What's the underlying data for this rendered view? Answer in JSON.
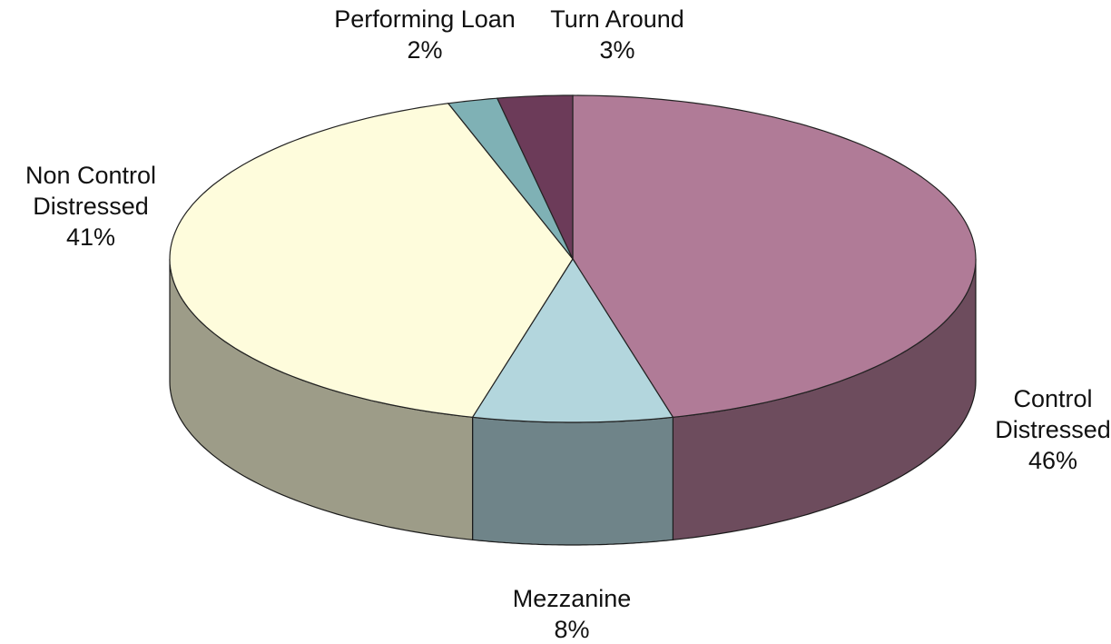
{
  "chart_data": {
    "type": "pie",
    "categories": [
      "Control Distressed",
      "Mezzanine",
      "Non Control Distressed",
      "Performing Loan",
      "Turn Around"
    ],
    "values": [
      46,
      8,
      41,
      2,
      3
    ],
    "value_labels": [
      "46%",
      "8%",
      "41%",
      "2%",
      "3%"
    ],
    "colors": [
      "#b07b97",
      "#b3d6dd",
      "#fefcdc",
      "#7fb1b5",
      "#6c3b59"
    ]
  }
}
